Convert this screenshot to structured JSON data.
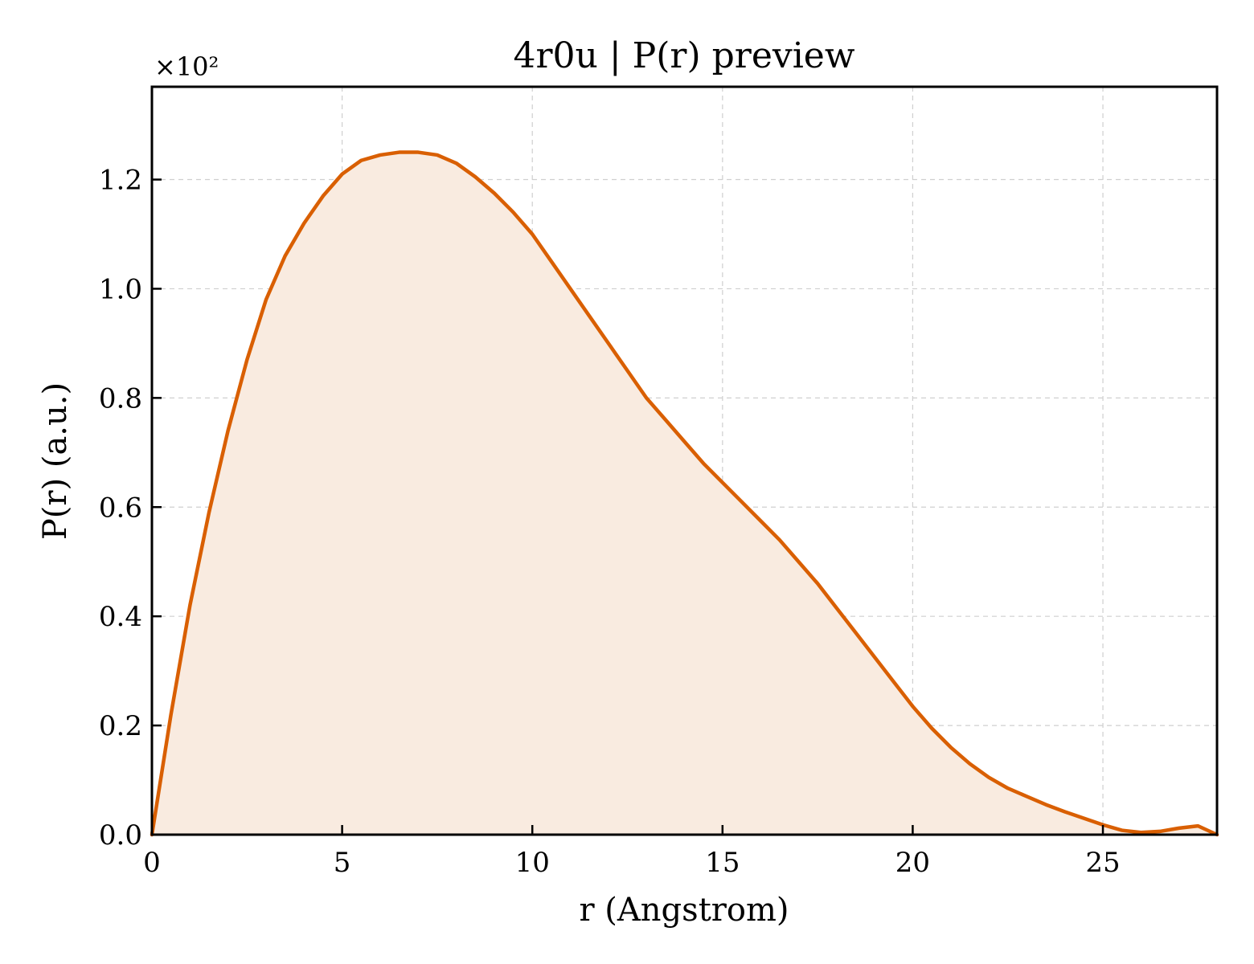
{
  "chart_data": {
    "type": "area",
    "title": "4r0u | P(r) preview",
    "xlabel": "r (Angstrom)",
    "ylabel": "P(r) (a.u.)",
    "y_multiplier_label": "×10²",
    "xlim": [
      0,
      28
    ],
    "ylim": [
      0,
      1.37
    ],
    "xticks": [
      0,
      5,
      10,
      15,
      20,
      25
    ],
    "yticks": [
      0.0,
      0.2,
      0.4,
      0.6,
      0.8,
      1.0,
      1.2
    ],
    "xtick_labels": [
      "0",
      "5",
      "10",
      "15",
      "20",
      "25"
    ],
    "ytick_labels": [
      "0.0",
      "0.2",
      "0.4",
      "0.6",
      "0.8",
      "1.0",
      "1.2"
    ],
    "grid": true,
    "line_color": "#d95f02",
    "fill_color": "#f9ebe0",
    "series": [
      {
        "x": [
          0,
          0.5,
          1,
          1.5,
          2,
          2.5,
          3,
          3.5,
          4,
          4.5,
          5,
          5.5,
          6,
          6.5,
          7,
          7.5,
          8,
          8.5,
          9,
          9.5,
          10,
          10.5,
          11,
          11.5,
          12,
          12.5,
          13,
          13.5,
          14,
          14.5,
          15,
          15.5,
          16,
          16.5,
          17,
          17.5,
          18,
          18.5,
          19,
          19.5,
          20,
          20.5,
          21,
          21.5,
          22,
          22.5,
          23,
          23.5,
          24,
          24.5,
          25,
          25.5,
          26,
          26.5,
          27,
          27.5,
          28
        ],
        "y": [
          0.0,
          0.22,
          0.42,
          0.59,
          0.74,
          0.87,
          0.98,
          1.06,
          1.12,
          1.17,
          1.21,
          1.235,
          1.245,
          1.25,
          1.25,
          1.245,
          1.23,
          1.205,
          1.175,
          1.14,
          1.1,
          1.05,
          1.0,
          0.95,
          0.9,
          0.85,
          0.8,
          0.76,
          0.72,
          0.68,
          0.645,
          0.61,
          0.575,
          0.54,
          0.5,
          0.46,
          0.415,
          0.37,
          0.325,
          0.28,
          0.235,
          0.195,
          0.16,
          0.13,
          0.105,
          0.085,
          0.07,
          0.055,
          0.042,
          0.03,
          0.018,
          0.008,
          0.004,
          0.006,
          0.012,
          0.016,
          0.0
        ]
      }
    ]
  }
}
